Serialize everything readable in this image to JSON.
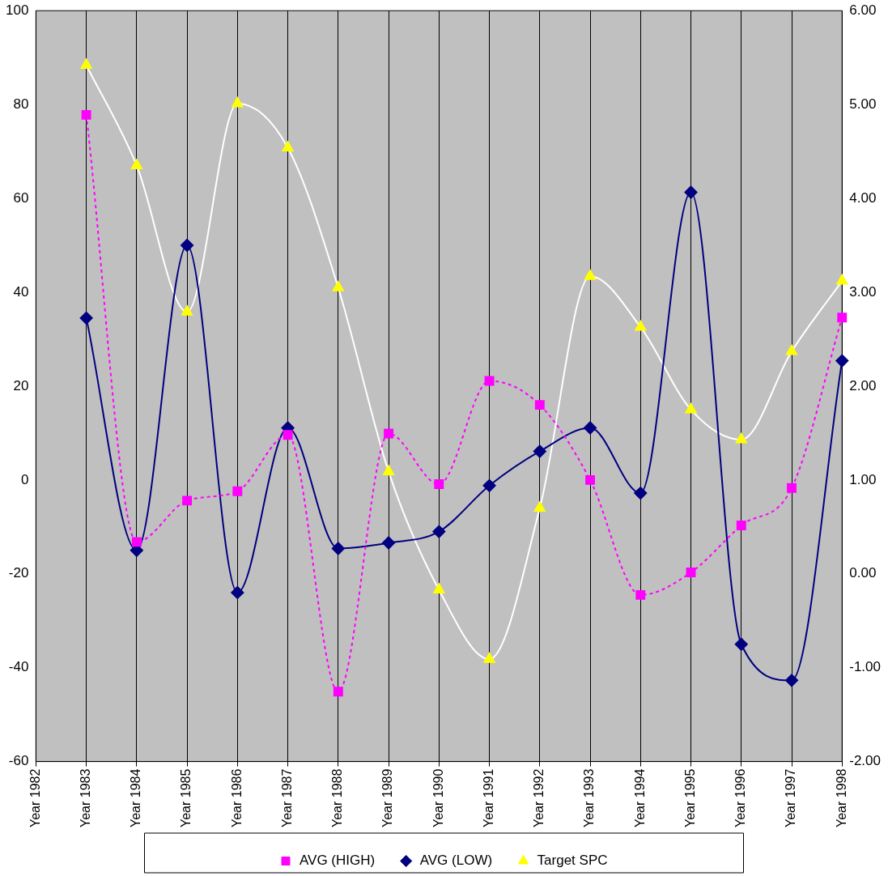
{
  "chart_data": {
    "type": "line",
    "categories": [
      "Year 1982",
      "Year 1983",
      "Year 1984",
      "Year 1985",
      "Year 1986",
      "Year 1987",
      "Year 1988",
      "Year 1989",
      "Year 1990",
      "Year 1991",
      "Year 1992",
      "Year 1993",
      "Year 1994",
      "Year 1995",
      "Year 1996",
      "Year 1997",
      "Year 1998"
    ],
    "series": [
      {
        "name": "AVG (HIGH)",
        "color": "#ff00ff",
        "marker": "square",
        "line_style": "dashed",
        "values": [
          null,
          77.8,
          -13.2,
          -4.4,
          -2.4,
          9.6,
          -45.1,
          9.9,
          -0.9,
          21.1,
          16.0,
          0,
          -24.5,
          -19.7,
          -9.7,
          -1.7,
          34.6
        ]
      },
      {
        "name": "AVG (LOW)",
        "color": "#000080",
        "marker": "diamond",
        "line_style": "solid",
        "values": [
          null,
          34.5,
          -15.0,
          50.0,
          -24.0,
          11.1,
          -14.6,
          -13.4,
          -11.0,
          -1.2,
          6.1,
          11.1,
          -2.8,
          61.3,
          -35.0,
          -42.7,
          25.4
        ]
      },
      {
        "name": "Target SPC",
        "color": "#ffff00",
        "marker": "triangle",
        "line_style": "solid",
        "axis": "y2",
        "values": [
          null,
          5.42,
          4.35,
          2.79,
          5.01,
          4.54,
          3.05,
          1.09,
          -0.17,
          -0.91,
          0.7,
          3.17,
          2.63,
          1.75,
          1.43,
          2.37,
          3.12
        ]
      }
    ],
    "ylim": [
      -60,
      100
    ],
    "yticks": [
      -60,
      -40,
      -20,
      0,
      20,
      40,
      60,
      80,
      100
    ],
    "y2lim": [
      -2,
      6
    ],
    "y2ticks": [
      {
        "value": -2,
        "label": "-2.00"
      },
      {
        "value": -1,
        "label": "-1.00"
      },
      {
        "value": 0,
        "label": "0.00"
      },
      {
        "value": 1,
        "label": "1.00"
      },
      {
        "value": 2,
        "label": "2.00"
      },
      {
        "value": 3,
        "label": "3.00"
      },
      {
        "value": 4,
        "label": "4.00"
      },
      {
        "value": 5,
        "label": "5.00"
      },
      {
        "value": 6,
        "label": "6.00"
      }
    ],
    "grid": "x",
    "legend": "bottom"
  }
}
